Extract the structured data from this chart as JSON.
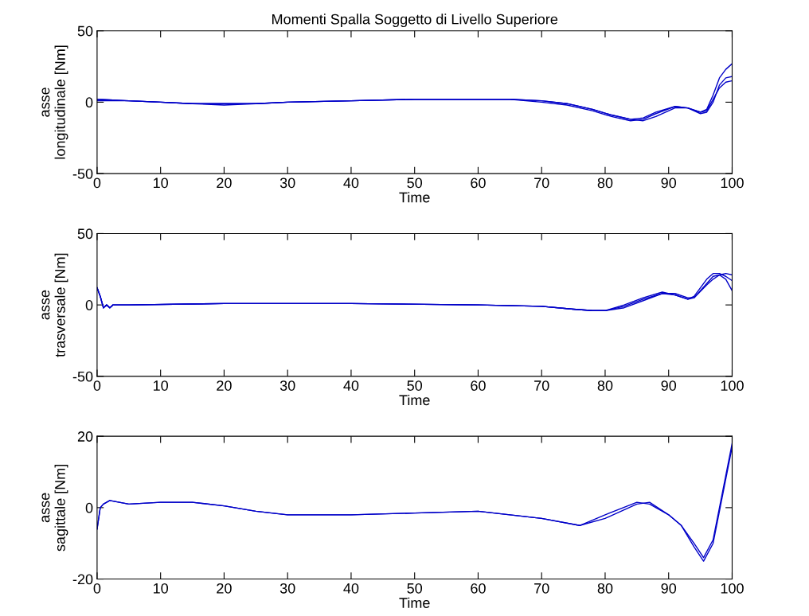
{
  "chart_data": [
    {
      "type": "line",
      "title": "Momenti Spalla Soggetto di Livello Superiore",
      "xlabel": "Time",
      "ylabel": "asse\nlongitudinale [Nm]",
      "xlim": [
        0,
        100
      ],
      "ylim": [
        -50,
        50
      ],
      "xticks": [
        0,
        10,
        20,
        30,
        40,
        50,
        60,
        70,
        80,
        90,
        100
      ],
      "yticks": [
        -50,
        0,
        50
      ],
      "grid": false,
      "legend": false,
      "x": [
        0,
        5,
        10,
        15,
        20,
        25,
        30,
        40,
        50,
        55,
        60,
        65,
        70,
        74,
        78,
        81,
        84,
        86,
        88,
        91,
        93,
        95,
        96,
        97,
        98,
        99,
        100
      ],
      "series": [
        {
          "color": "#0000c8",
          "values": [
            2,
            1,
            0,
            -1,
            -1,
            -1,
            0,
            1,
            2,
            2,
            2,
            2,
            1,
            -1,
            -5,
            -9,
            -12,
            -11,
            -7,
            -3,
            -4,
            -7,
            -6,
            2,
            10,
            14,
            15
          ]
        },
        {
          "color": "#0000c8",
          "values": [
            2,
            1,
            0,
            -1,
            -2,
            -1,
            0,
            1,
            2,
            2,
            2,
            2,
            0,
            -2,
            -6,
            -10,
            -13,
            -12,
            -8,
            -3,
            -4,
            -8,
            -7,
            0,
            12,
            17,
            18
          ]
        },
        {
          "color": "#0000c8",
          "values": [
            1,
            1,
            0,
            -1,
            -1,
            -1,
            0,
            1,
            2,
            2,
            2,
            2,
            1,
            -1,
            -5,
            -9,
            -12,
            -13,
            -10,
            -4,
            -4,
            -7,
            -5,
            5,
            17,
            23,
            27
          ]
        }
      ]
    },
    {
      "type": "line",
      "xlabel": "Time",
      "ylabel": "asse\ntrasversale [Nm]",
      "xlim": [
        0,
        100
      ],
      "ylim": [
        -50,
        50
      ],
      "xticks": [
        0,
        10,
        20,
        30,
        40,
        50,
        60,
        70,
        80,
        90,
        100
      ],
      "yticks": [
        -50,
        0,
        50
      ],
      "grid": false,
      "legend": false,
      "x": [
        0,
        0.5,
        1,
        1.5,
        2,
        2.5,
        5,
        20,
        40,
        60,
        70,
        75,
        78,
        80,
        83,
        86,
        89,
        91,
        93,
        94,
        96,
        97,
        98,
        99,
        100
      ],
      "series": [
        {
          "color": "#0000c8",
          "values": [
            12,
            6,
            -2,
            0,
            -2,
            0,
            0,
            1,
            1,
            0,
            -1,
            -3,
            -4,
            -4,
            -1,
            4,
            8,
            7,
            4,
            5,
            15,
            20,
            21,
            18,
            10
          ]
        },
        {
          "color": "#0000c8",
          "values": [
            12,
            6,
            -2,
            0,
            -2,
            0,
            0,
            1,
            1,
            0,
            -1,
            -3,
            -4,
            -4,
            0,
            5,
            9,
            7,
            4,
            6,
            18,
            22,
            22,
            20,
            17
          ]
        },
        {
          "color": "#0000c8",
          "values": [
            12,
            6,
            -2,
            0,
            -2,
            0,
            0,
            1,
            1,
            0,
            -1,
            -3,
            -4,
            -4,
            -2,
            3,
            8,
            8,
            5,
            5,
            14,
            18,
            21,
            22,
            21
          ]
        }
      ]
    },
    {
      "type": "line",
      "xlabel": "Time",
      "ylabel": "asse\nsagittale [Nm]",
      "xlim": [
        0,
        100
      ],
      "ylim": [
        -20,
        20
      ],
      "xticks": [
        0,
        10,
        20,
        30,
        40,
        50,
        60,
        70,
        80,
        90,
        100
      ],
      "yticks": [
        -20,
        0,
        20
      ],
      "grid": false,
      "legend": false,
      "x": [
        0,
        0.5,
        1,
        2,
        5,
        10,
        15,
        20,
        25,
        30,
        40,
        50,
        60,
        65,
        70,
        76,
        80,
        85,
        87,
        90,
        92,
        94,
        95.5,
        97,
        98,
        99,
        100
      ],
      "series": [
        {
          "color": "#0000c8",
          "values": [
            -6,
            0,
            1,
            2,
            1,
            1.5,
            1.5,
            0.5,
            -1,
            -2,
            -2,
            -1.5,
            -1,
            -2,
            -3,
            -5,
            -2,
            1.5,
            1,
            -2,
            -5,
            -10,
            -14,
            -9,
            0,
            9,
            18
          ]
        },
        {
          "color": "#0000c8",
          "values": [
            -6,
            0,
            1,
            2,
            1,
            1.5,
            1.5,
            0.5,
            -1,
            -2,
            -2,
            -1.5,
            -1,
            -2,
            -3,
            -5,
            -3,
            1,
            1.5,
            -2,
            -5,
            -11,
            -15,
            -10,
            -1,
            8,
            17
          ]
        }
      ]
    }
  ]
}
